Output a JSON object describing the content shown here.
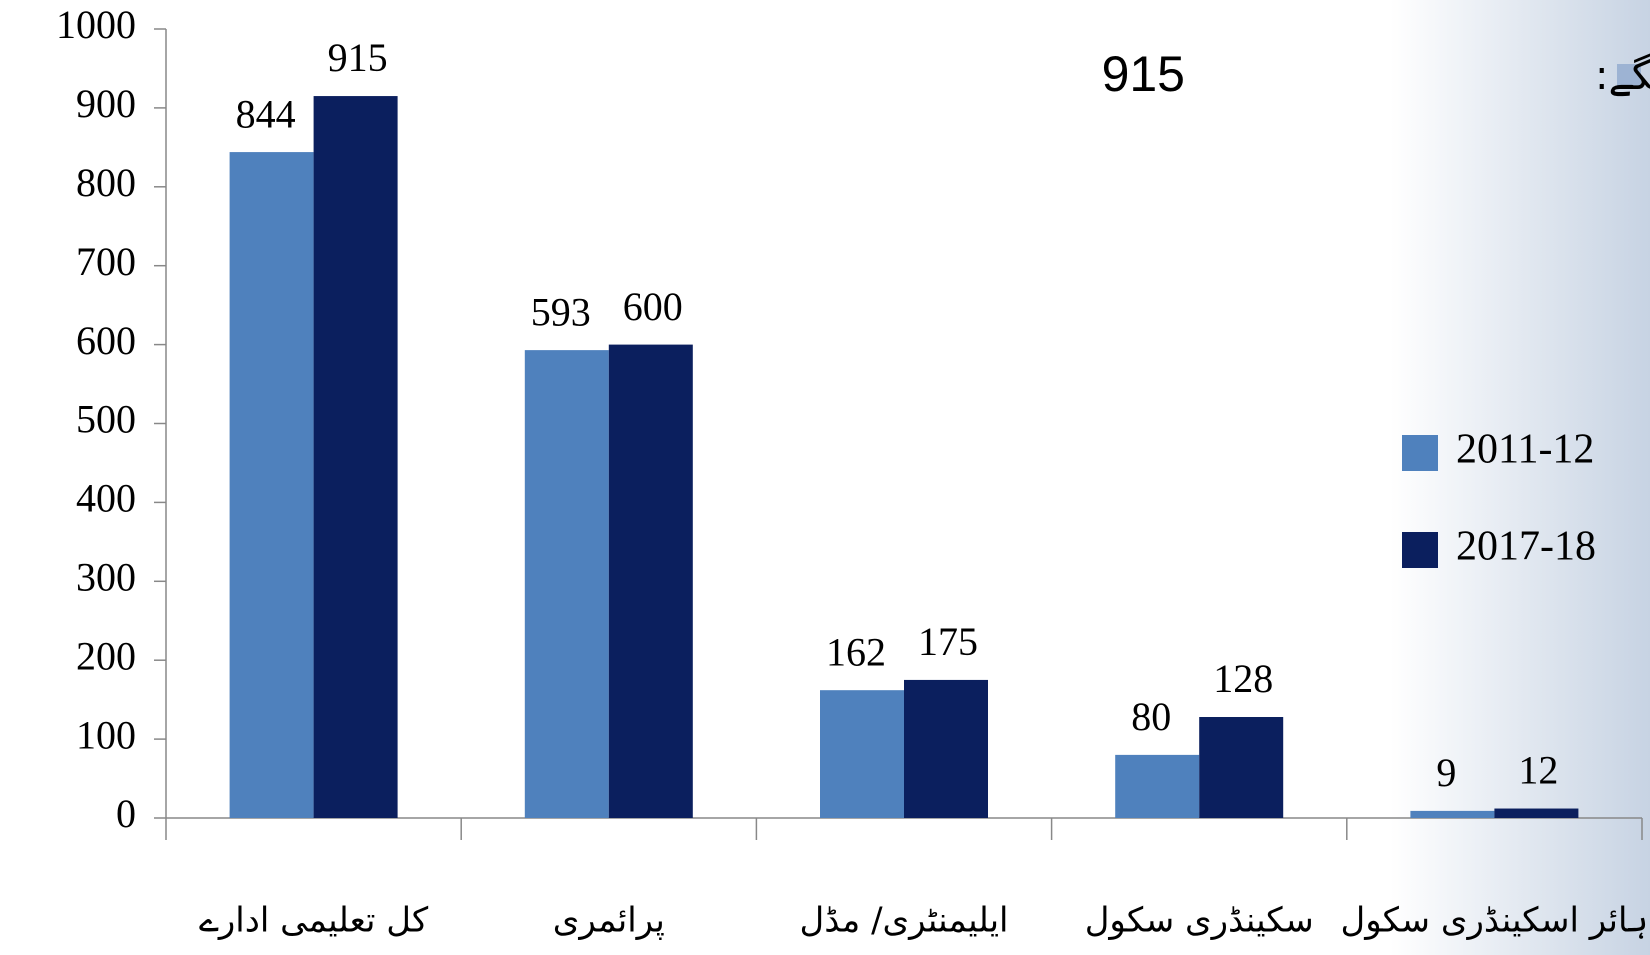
{
  "chart_data": {
    "type": "bar",
    "annotation": {
      "text": "کتنے نئے سکول درکار ہونگے:",
      "value": 915
    },
    "categories": [
      "کل تعلیمی ادارے",
      "پرائمری",
      "ایلیمنٹری/ مڈل",
      "سکینڈری سکول",
      "ہائر اسکینڈری سکول"
    ],
    "series": [
      {
        "name": "2011-12",
        "color": "#4f81bd",
        "values": [
          844,
          593,
          162,
          80,
          9
        ]
      },
      {
        "name": "2017-18",
        "color": "#0b1f5e",
        "values": [
          915,
          600,
          175,
          128,
          12
        ]
      }
    ],
    "ylim": [
      0,
      1000
    ],
    "yticks": [
      0,
      100,
      200,
      300,
      400,
      500,
      600,
      700,
      800,
      900,
      1000
    ],
    "legend": "right"
  }
}
